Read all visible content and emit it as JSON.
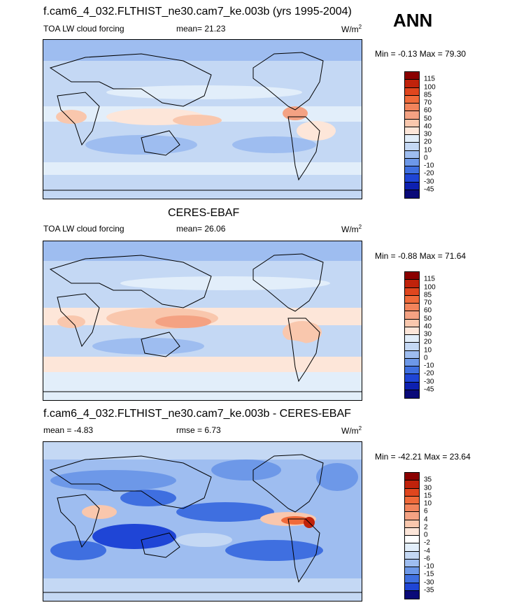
{
  "season": "ANN",
  "panel1": {
    "title": "f.cam6_4_032.FLTHIST_ne30.cam7_ke.003b (yrs 1995-2004)",
    "left_label": "TOA LW cloud forcing",
    "mean_text": "mean=  21.23",
    "units": "W/m",
    "units_exp": "2",
    "minmax": "Min =  -0.13 Max =  79.30",
    "colorbar": {
      "labels": [
        "115",
        "100",
        "85",
        "70",
        "60",
        "50",
        "40",
        "30",
        "20",
        "10",
        "0",
        "-10",
        "-20",
        "-30",
        "-45"
      ],
      "colors": [
        "#8b0000",
        "#c0220b",
        "#e0461e",
        "#f06a3a",
        "#f2845c",
        "#f4a283",
        "#f9c7ad",
        "#fde6d9",
        "#e2eefa",
        "#c4d8f4",
        "#9ebdf0",
        "#6d98e8",
        "#3f6fe0",
        "#1f45d6",
        "#0d20b0",
        "#0a0a78"
      ]
    }
  },
  "panel2": {
    "title": "CERES-EBAF",
    "left_label": "TOA LW cloud forcing",
    "mean_text": "mean=  26.06",
    "units": "W/m",
    "units_exp": "2",
    "minmax": "Min =  -0.88 Max =  71.64",
    "colorbar": {
      "labels": [
        "115",
        "100",
        "85",
        "70",
        "60",
        "50",
        "40",
        "30",
        "20",
        "10",
        "0",
        "-10",
        "-20",
        "-30",
        "-45"
      ],
      "colors": [
        "#8b0000",
        "#c0220b",
        "#e0461e",
        "#f06a3a",
        "#f2845c",
        "#f4a283",
        "#f9c7ad",
        "#fde6d9",
        "#e2eefa",
        "#c4d8f4",
        "#9ebdf0",
        "#6d98e8",
        "#3f6fe0",
        "#1f45d6",
        "#0d20b0",
        "#0a0a78"
      ]
    }
  },
  "panel3": {
    "title": "f.cam6_4_032.FLTHIST_ne30.cam7_ke.003b - CERES-EBAF",
    "left_label": "mean =  -4.83",
    "mean_text": "rmse =   6.73",
    "units": "W/m",
    "units_exp": "2",
    "minmax": "Min = -42.21 Max =  23.64",
    "colorbar": {
      "labels": [
        "35",
        "30",
        "15",
        "10",
        "6",
        "4",
        "2",
        "0",
        "-2",
        "-4",
        "-6",
        "-10",
        "-15",
        "-30",
        "-35"
      ],
      "colors": [
        "#8b0000",
        "#c0220b",
        "#e0461e",
        "#f06a3a",
        "#f2845c",
        "#f4a283",
        "#f9c7ad",
        "#fde6d9",
        "#ffffff",
        "#e2eefa",
        "#c4d8f4",
        "#9ebdf0",
        "#6d98e8",
        "#3f6fe0",
        "#1f45d6",
        "#0a0a78"
      ]
    }
  }
}
